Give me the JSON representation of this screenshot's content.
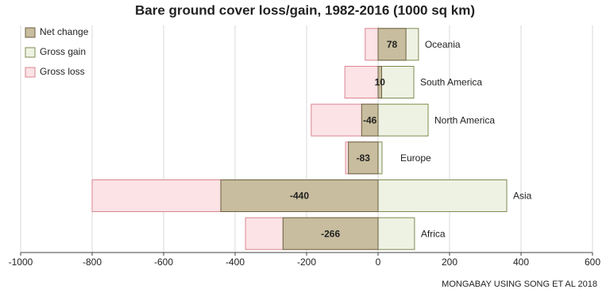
{
  "chart_data": {
    "type": "bar",
    "orientation": "horizontal",
    "title": "Bare ground cover loss/gain, 1982-2016 (1000 sq km)",
    "categories": [
      "Oceania",
      "South America",
      "North America",
      "Europe",
      "Asia",
      "Africa"
    ],
    "series": [
      {
        "name": "Net change",
        "color": "#c8bd9e",
        "values": [
          78,
          10,
          -46,
          -83,
          -440,
          -266
        ]
      },
      {
        "name": "Gross gain",
        "color": "#eef2e3",
        "values": [
          113,
          100,
          140,
          11,
          360,
          102
        ]
      },
      {
        "name": "Gross loss",
        "color": "#fbe3e6",
        "values": [
          -36,
          -93,
          -187,
          -91,
          -800,
          -371
        ]
      }
    ],
    "xlim": [
      -1000,
      600
    ],
    "xticks": [
      -1000,
      -800,
      -600,
      -400,
      -200,
      0,
      200,
      400,
      600
    ],
    "grid": true,
    "legend": "top-left",
    "source": "MONGABAY USING SONG ET AL 2018"
  }
}
